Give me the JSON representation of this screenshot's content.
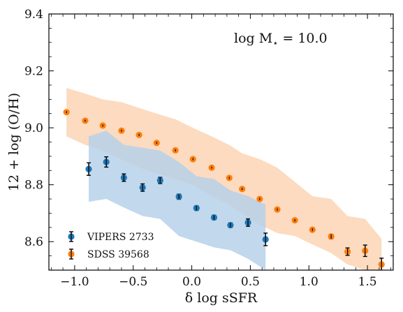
{
  "chart_data": {
    "type": "scatter",
    "title": "",
    "xlabel": "δ log sSFR",
    "ylabel": "12 + log (O/H)",
    "xlim": [
      -1.22,
      1.72
    ],
    "ylim": [
      8.5,
      9.4
    ],
    "xticks": [
      -1.0,
      -0.5,
      0.0,
      0.5,
      1.0,
      1.5
    ],
    "xtick_labels": [
      "−1.0",
      "−0.5",
      "0.0",
      "0.5",
      "1.0",
      "1.5"
    ],
    "yticks": [
      8.6,
      8.8,
      9.0,
      9.2,
      9.4
    ],
    "ytick_labels": [
      "8.6",
      "8.8",
      "9.0",
      "9.2",
      "9.4"
    ],
    "grid": false,
    "legend_position": "bottom-left",
    "annotation": {
      "prefix": "log M",
      "subscript": "⋆",
      "suffix": " = 10.0"
    },
    "series": [
      {
        "name": "VIPERS 2733",
        "color": "#1f77b4",
        "band_color": "#b3d0e9",
        "points": [
          {
            "x": -0.88,
            "y": 8.855,
            "err": 0.022
          },
          {
            "x": -0.73,
            "y": 8.88,
            "err": 0.018
          },
          {
            "x": -0.58,
            "y": 8.825,
            "err": 0.013
          },
          {
            "x": -0.42,
            "y": 8.79,
            "err": 0.013
          },
          {
            "x": -0.27,
            "y": 8.815,
            "err": 0.011
          },
          {
            "x": -0.11,
            "y": 8.758,
            "err": 0.009
          },
          {
            "x": 0.04,
            "y": 8.718,
            "err": 0.008
          },
          {
            "x": 0.19,
            "y": 8.685,
            "err": 0.008
          },
          {
            "x": 0.33,
            "y": 8.658,
            "err": 0.008
          },
          {
            "x": 0.48,
            "y": 8.667,
            "err": 0.013
          },
          {
            "x": 0.63,
            "y": 8.608,
            "err": 0.022
          }
        ],
        "band": {
          "x": [
            -0.88,
            -0.73,
            -0.58,
            -0.42,
            -0.27,
            -0.11,
            0.04,
            0.19,
            0.33,
            0.48,
            0.63
          ],
          "upper": [
            8.97,
            8.99,
            8.94,
            8.93,
            8.92,
            8.88,
            8.83,
            8.82,
            8.78,
            8.76,
            8.73
          ],
          "lower": [
            8.74,
            8.75,
            8.72,
            8.69,
            8.68,
            8.62,
            8.6,
            8.58,
            8.57,
            8.54,
            8.5
          ]
        }
      },
      {
        "name": "SDSS 39568",
        "color": "#ff7f0e",
        "band_color": "#fcd5b5",
        "points": [
          {
            "x": -1.07,
            "y": 9.055,
            "err": 0.003
          },
          {
            "x": -0.91,
            "y": 9.025,
            "err": 0.003
          },
          {
            "x": -0.76,
            "y": 9.008,
            "err": 0.003
          },
          {
            "x": -0.6,
            "y": 8.99,
            "err": 0.003
          },
          {
            "x": -0.45,
            "y": 8.975,
            "err": 0.003
          },
          {
            "x": -0.3,
            "y": 8.947,
            "err": 0.003
          },
          {
            "x": -0.14,
            "y": 8.921,
            "err": 0.003
          },
          {
            "x": 0.01,
            "y": 8.89,
            "err": 0.003
          },
          {
            "x": 0.17,
            "y": 8.86,
            "err": 0.003
          },
          {
            "x": 0.32,
            "y": 8.824,
            "err": 0.003
          },
          {
            "x": 0.43,
            "y": 8.785,
            "err": 0.003
          },
          {
            "x": 0.58,
            "y": 8.75,
            "err": 0.003
          },
          {
            "x": 0.73,
            "y": 8.713,
            "err": 0.004
          },
          {
            "x": 0.88,
            "y": 8.675,
            "err": 0.004
          },
          {
            "x": 1.03,
            "y": 8.642,
            "err": 0.005
          },
          {
            "x": 1.19,
            "y": 8.618,
            "err": 0.008
          },
          {
            "x": 1.33,
            "y": 8.565,
            "err": 0.013
          },
          {
            "x": 1.48,
            "y": 8.568,
            "err": 0.02
          },
          {
            "x": 1.62,
            "y": 8.52,
            "err": 0.022
          }
        ],
        "band": {
          "x": [
            -1.07,
            -0.91,
            -0.76,
            -0.6,
            -0.45,
            -0.3,
            -0.14,
            0.01,
            0.17,
            0.32,
            0.43,
            0.58,
            0.73,
            0.88,
            1.03,
            1.19,
            1.33,
            1.48,
            1.62
          ],
          "upper": [
            9.14,
            9.12,
            9.1,
            9.09,
            9.07,
            9.05,
            9.03,
            9.0,
            8.97,
            8.94,
            8.91,
            8.89,
            8.86,
            8.81,
            8.76,
            8.75,
            8.69,
            8.68,
            8.61
          ],
          "lower": [
            8.97,
            8.94,
            8.92,
            8.89,
            8.86,
            8.84,
            8.82,
            8.8,
            8.76,
            8.73,
            8.7,
            8.66,
            8.63,
            8.62,
            8.59,
            8.56,
            8.52,
            8.5,
            8.5
          ]
        }
      }
    ]
  }
}
